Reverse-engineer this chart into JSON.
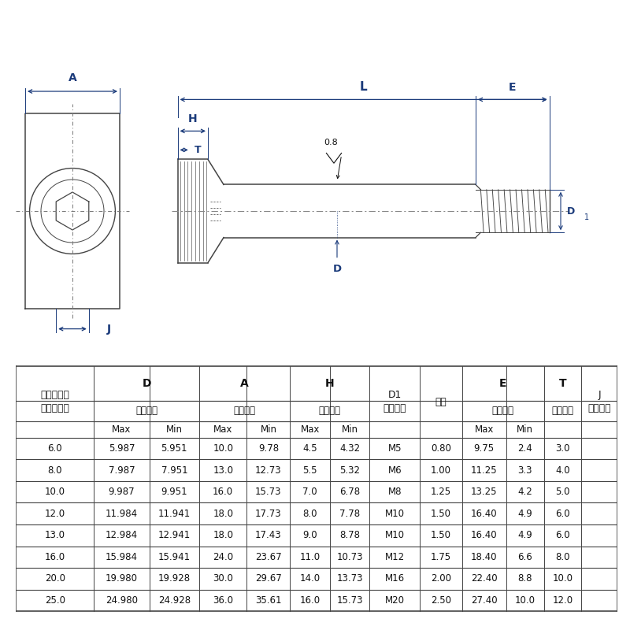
{
  "bg_color": "#ffffff",
  "line_color": "#444444",
  "dim_color": "#1a3a7a",
  "text_color": "#111111",
  "data_rows": [
    [
      "6.0",
      "5.987",
      "5.951",
      "10.0",
      "9.78",
      "4.5",
      "4.32",
      "M5",
      "0.80",
      "9.75",
      "2.4",
      "3.0"
    ],
    [
      "8.0",
      "7.987",
      "7.951",
      "13.0",
      "12.73",
      "5.5",
      "5.32",
      "M6",
      "1.00",
      "11.25",
      "3.3",
      "4.0"
    ],
    [
      "10.0",
      "9.987",
      "9.951",
      "16.0",
      "15.73",
      "7.0",
      "6.78",
      "M8",
      "1.25",
      "13.25",
      "4.2",
      "5.0"
    ],
    [
      "12.0",
      "11.984",
      "11.941",
      "18.0",
      "17.73",
      "8.0",
      "7.78",
      "M10",
      "1.50",
      "16.40",
      "4.9",
      "6.0"
    ],
    [
      "13.0",
      "12.984",
      "12.941",
      "18.0",
      "17.43",
      "9.0",
      "8.78",
      "M10",
      "1.50",
      "16.40",
      "4.9",
      "6.0"
    ],
    [
      "16.0",
      "15.984",
      "15.941",
      "24.0",
      "23.67",
      "11.0",
      "10.73",
      "M12",
      "1.75",
      "18.40",
      "6.6",
      "8.0"
    ],
    [
      "20.0",
      "19.980",
      "19.928",
      "30.0",
      "29.67",
      "14.0",
      "13.73",
      "M16",
      "2.00",
      "22.40",
      "8.8",
      "10.0"
    ],
    [
      "25.0",
      "24.980",
      "24.928",
      "36.0",
      "35.61",
      "16.0",
      "15.73",
      "M20",
      "2.50",
      "27.40",
      "10.0",
      "12.0"
    ]
  ]
}
